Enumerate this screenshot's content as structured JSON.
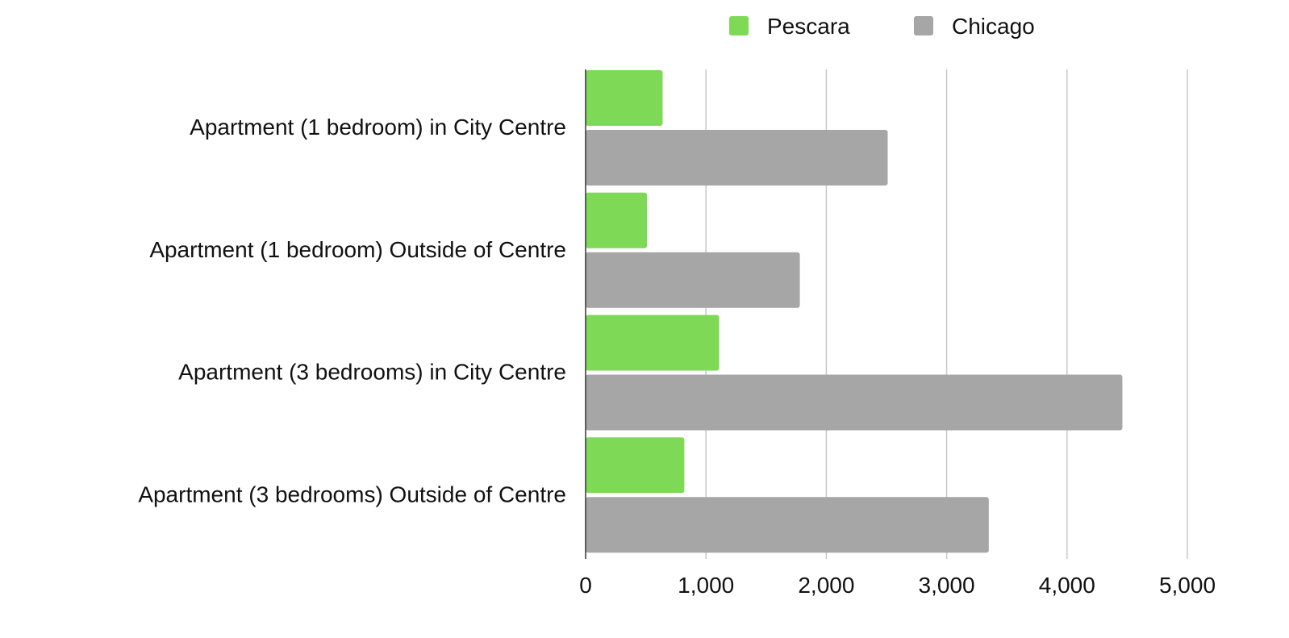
{
  "chart_data": {
    "type": "bar",
    "orientation": "horizontal",
    "categories": [
      "Apartment (1 bedroom) in City Centre",
      "Apartment (1 bedroom) Outside of Centre",
      "Apartment (3 bedrooms) in City Centre",
      "Apartment (3 bedrooms) Outside of Centre"
    ],
    "series": [
      {
        "name": "Pescara",
        "color": "#7ed957",
        "values": [
          640,
          510,
          1110,
          820
        ]
      },
      {
        "name": "Chicago",
        "color": "#a6a6a6",
        "values": [
          2510,
          1780,
          4460,
          3350
        ]
      }
    ],
    "xlim": [
      0,
      5000
    ],
    "xticks": [
      "0",
      "1,000",
      "2,000",
      "3,000",
      "4,000",
      "5,000"
    ],
    "grid": "vertical",
    "legend_position": "top-right",
    "title": "",
    "xlabel": "",
    "ylabel": ""
  }
}
